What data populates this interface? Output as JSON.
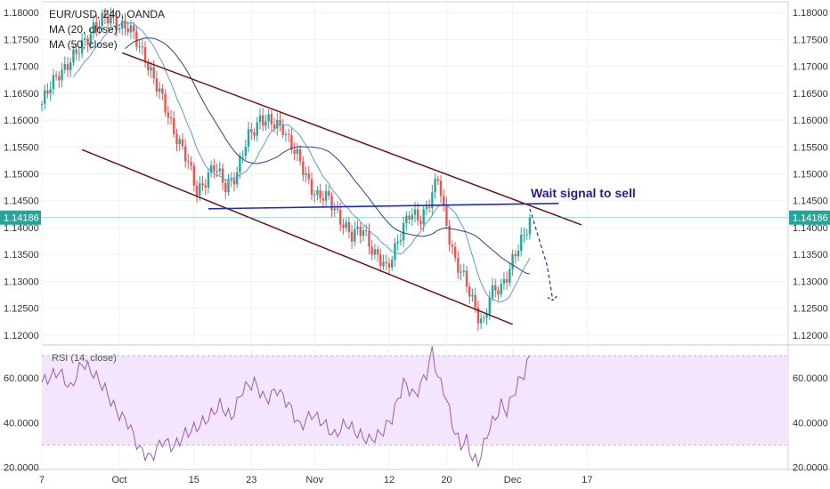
{
  "legend": {
    "symbol": "EUR/USD, 240, OANDA",
    "ma20": "MA (20, close)",
    "ma50": "MA (50, close)"
  },
  "rsi_legend": "RSI (14, close)",
  "annotation": "Wait signal to sell",
  "colors": {
    "up": "#26a69a",
    "down": "#ef5350",
    "ma20": "#5b9bd5",
    "ma50": "#2a3f8f",
    "channel": "#6d1414",
    "support": "#1f2bbf",
    "annotation": "#2a1b8a",
    "price_badge": "#26a69a",
    "rsi_line": "#9b59b6",
    "rsi_band": "#f3e5fb"
  },
  "chart_data": {
    "type": "line",
    "symbol": "EUR/USD",
    "timeframe": "240",
    "x_ticks": [
      "7",
      "Oct",
      "15",
      "23",
      "Nov",
      "12",
      "20",
      "Dec",
      "17"
    ],
    "y_ticks": [
      "1.18000",
      "1.17500",
      "1.17000",
      "1.16500",
      "1.16000",
      "1.15500",
      "1.15000",
      "1.14500",
      "1.14000",
      "1.13500",
      "1.13000",
      "1.12500",
      "1.12000"
    ],
    "ylim": [
      1.1185,
      1.182
    ],
    "last_price": "1.14186",
    "price_path": [
      [
        0,
        1.163
      ],
      [
        3,
        1.169
      ],
      [
        6,
        1.172
      ],
      [
        9,
        1.1775
      ],
      [
        12,
        1.179
      ],
      [
        15,
        1.177
      ],
      [
        18,
        1.172
      ],
      [
        20,
        1.166
      ],
      [
        22,
        1.161
      ],
      [
        25,
        1.153
      ],
      [
        27,
        1.147
      ],
      [
        30,
        1.151
      ],
      [
        32,
        1.148
      ],
      [
        34,
        1.15
      ],
      [
        36,
        1.157
      ],
      [
        38,
        1.1605
      ],
      [
        40,
        1.159
      ],
      [
        42,
        1.159
      ],
      [
        44,
        1.154
      ],
      [
        46,
        1.1495
      ],
      [
        48,
        1.146
      ],
      [
        50,
        1.145
      ],
      [
        52,
        1.142
      ],
      [
        54,
        1.138
      ],
      [
        56,
        1.14
      ],
      [
        58,
        1.135
      ],
      [
        60,
        1.132
      ],
      [
        62,
        1.138
      ],
      [
        64,
        1.142
      ],
      [
        66,
        1.142
      ],
      [
        68,
        1.146
      ],
      [
        69,
        1.149
      ],
      [
        70,
        1.143
      ],
      [
        72,
        1.134
      ],
      [
        74,
        1.129
      ],
      [
        76,
        1.124
      ],
      [
        77,
        1.1225
      ],
      [
        78,
        1.127
      ],
      [
        80,
        1.129
      ],
      [
        82,
        1.134
      ],
      [
        84,
        1.138
      ],
      [
        85,
        1.1418
      ]
    ],
    "x_domain": [
      0,
      130
    ],
    "channel_upper": [
      [
        14,
        1.1725
      ],
      [
        94,
        1.1405
      ]
    ],
    "channel_lower": [
      [
        7,
        1.1545
      ],
      [
        82,
        1.122
      ]
    ],
    "support_line": [
      [
        29,
        1.1435
      ],
      [
        90,
        1.1445
      ]
    ],
    "projection": [
      [
        85,
        1.1435
      ],
      [
        88,
        1.133
      ],
      [
        89,
        1.1265
      ]
    ],
    "rsi": {
      "y_ticks": [
        "60.0000",
        "40.0000",
        "20.0000"
      ],
      "ylim": [
        19,
        74
      ],
      "band": [
        30,
        70
      ],
      "values": [
        [
          0,
          58
        ],
        [
          3,
          63
        ],
        [
          5,
          55
        ],
        [
          7,
          67
        ],
        [
          9,
          62
        ],
        [
          11,
          55
        ],
        [
          13,
          45
        ],
        [
          15,
          40
        ],
        [
          17,
          28
        ],
        [
          19,
          24
        ],
        [
          21,
          32
        ],
        [
          23,
          29
        ],
        [
          25,
          35
        ],
        [
          27,
          38
        ],
        [
          29,
          42
        ],
        [
          31,
          48
        ],
        [
          33,
          42
        ],
        [
          35,
          55
        ],
        [
          37,
          58
        ],
        [
          39,
          50
        ],
        [
          41,
          55
        ],
        [
          43,
          48
        ],
        [
          45,
          38
        ],
        [
          47,
          44
        ],
        [
          49,
          40
        ],
        [
          51,
          34
        ],
        [
          53,
          40
        ],
        [
          55,
          35
        ],
        [
          57,
          32
        ],
        [
          59,
          35
        ],
        [
          61,
          42
        ],
        [
          63,
          58
        ],
        [
          65,
          52
        ],
        [
          67,
          62
        ],
        [
          68,
          72
        ],
        [
          69,
          60
        ],
        [
          70,
          55
        ],
        [
          71,
          45
        ],
        [
          72,
          35
        ],
        [
          73,
          30
        ],
        [
          74,
          32
        ],
        [
          75,
          24
        ],
        [
          76,
          22
        ],
        [
          77,
          30
        ],
        [
          78,
          38
        ],
        [
          79,
          42
        ],
        [
          80,
          48
        ],
        [
          81,
          45
        ],
        [
          82,
          52
        ],
        [
          83,
          58
        ],
        [
          84,
          62
        ],
        [
          85,
          70
        ]
      ]
    }
  }
}
